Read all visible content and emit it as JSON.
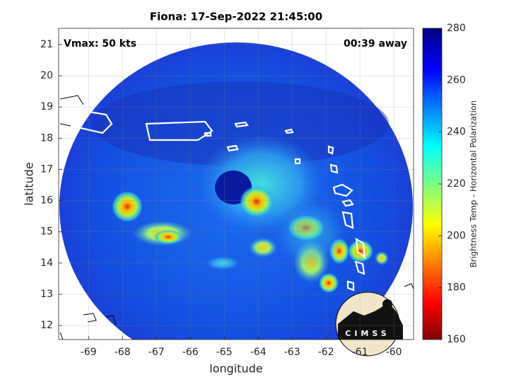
{
  "chart_data": {
    "type": "map",
    "title": "Fiona: 17-Sep-2022 21:45:00",
    "annotations": [
      "Vmax: 50 kts",
      "00:39 away"
    ],
    "x_label": "longitude",
    "y_label": "latitude",
    "xlim": [
      -69.88,
      -59.42
    ],
    "ylim": [
      11.55,
      21.52
    ],
    "xticks": [
      -69,
      -68,
      -67,
      -66,
      -65,
      -64,
      -63,
      -62,
      -61,
      -60
    ],
    "yticks": [
      12,
      13,
      14,
      15,
      16,
      17,
      18,
      19,
      20,
      21
    ],
    "grid": true,
    "colorbar": {
      "label": "Brightness Temp - Horizontal Polarization",
      "lim": [
        160,
        280
      ],
      "ticks": [
        160,
        180,
        200,
        220,
        240,
        260,
        280
      ]
    },
    "logo": "CIMSS"
  }
}
